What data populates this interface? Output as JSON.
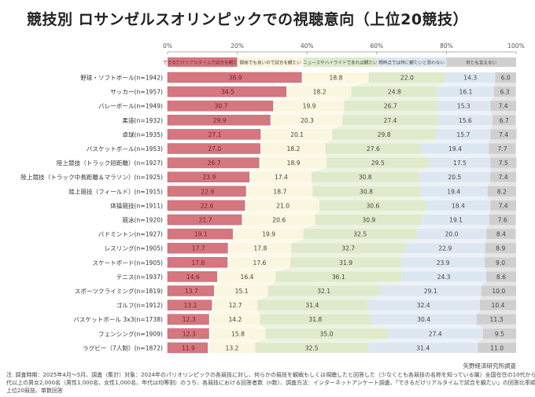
{
  "title": "競技別 ロサンゼルスオリンピックでの視聴意向（上位20競技）",
  "source": "矢野経済研究所調査",
  "notes": [
    "注. 調査時期：2025年4月～5月、調査（集計）対象：2024年のパリオリンピックの各競技に対し、何らかの競技を観戦もしくは視聴したと回答した（少なくとも各競技の名称を知っている層）全国在住の10代から60",
    "代以上の男女2,000名（男性1,000名、女性1,000名、年代は均等割）のうち、各競技における回答者数（n数）、調査方法：インターネットアンケート調査、「できるだけリアルタイムで試合を観たい」の回答比率順の",
    "上位20競技、単数回答"
  ],
  "colors": {
    "realtime": "#d4777f",
    "recorded": "#fbf6df",
    "highlights": "#dfeacb",
    "not_interested": "#dde7f1",
    "unknown": "#cfcfcf"
  },
  "chart_data": {
    "type": "bar",
    "orientation": "horizontal-stacked-100",
    "title": "競技別 ロサンゼルスオリンピックでの視聴意向（上位20競技）",
    "xlabel": "",
    "ylabel": "",
    "xlim": [
      0,
      100
    ],
    "x_ticks": [
      "0%",
      "20%",
      "40%",
      "60%",
      "80%",
      "100%"
    ],
    "grid": false,
    "legend_position": "top",
    "categories": [
      "野球・ソフトボール(n=1942)",
      "サッカー(n=1957)",
      "バレーボール(n=1949)",
      "柔道(n=1932)",
      "卓球(n=1935)",
      "バスケットボール(n=1953)",
      "陸上競技（トラック短距離）(n=1927)",
      "陸上競技（トラック中長距離＆マラソン）(n=1925)",
      "陸上競技（フィールド）(n=1915)",
      "体操競技(n=1911)",
      "競泳(n=1920)",
      "バドミントン(n=1927)",
      "レスリング(n=1905)",
      "スケートボード(n=1905)",
      "テニス(n=1937)",
      "スポーツクライミング(n=1819)",
      "ゴルフ(n=1912)",
      "バスケットボール 3x3(n=1738)",
      "フェンシング(n=1909)",
      "ラグビー（7人制）(n=1872)"
    ],
    "series": [
      {
        "name": "できるだけリアルタイムで試合を観たい",
        "key": "realtime",
        "values": [
          38.9,
          34.5,
          30.7,
          29.9,
          27.1,
          27.0,
          26.7,
          23.9,
          22.9,
          22.6,
          21.7,
          19.1,
          17.7,
          17.6,
          14.6,
          13.7,
          13.1,
          12.3,
          12.3,
          11.9
        ]
      },
      {
        "name": "録画でも良いので試合を観たい",
        "key": "recorded",
        "values": [
          18.8,
          18.2,
          19.9,
          20.3,
          20.1,
          18.2,
          18.9,
          17.4,
          18.7,
          21.0,
          20.6,
          19.9,
          17.8,
          17.6,
          16.4,
          15.1,
          12.7,
          14.2,
          15.8,
          13.2
        ]
      },
      {
        "name": "ニュースやハイライトであれば観たい",
        "key": "highlights",
        "values": [
          22.0,
          24.8,
          26.7,
          27.4,
          29.8,
          27.6,
          29.5,
          30.8,
          30.8,
          30.6,
          30.9,
          32.5,
          32.7,
          31.9,
          36.1,
          32.1,
          31.4,
          31.8,
          35.0,
          32.5
        ]
      },
      {
        "name": "現時点では特に観たいと思わない",
        "key": "not_interested",
        "values": [
          14.3,
          16.1,
          15.3,
          15.6,
          15.7,
          19.4,
          17.5,
          20.5,
          19.4,
          18.4,
          19.1,
          20.0,
          22.9,
          23.9,
          24.3,
          29.1,
          32.4,
          30.4,
          27.4,
          31.4
        ]
      },
      {
        "name": "何とも言えない",
        "key": "unknown",
        "values": [
          6.0,
          6.3,
          7.4,
          6.7,
          7.4,
          7.7,
          7.5,
          7.4,
          8.2,
          7.4,
          7.6,
          8.4,
          8.9,
          9.0,
          8.6,
          10.0,
          10.4,
          11.3,
          9.5,
          11.0
        ]
      }
    ]
  }
}
